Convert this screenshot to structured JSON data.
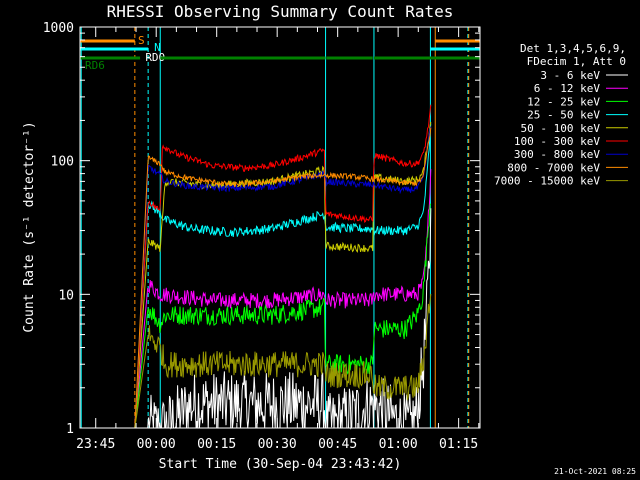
{
  "chart_data": {
    "type": "line",
    "title": "RHESSI Observing Summary Count Rates",
    "xlabel": "Start Time (30-Sep-04 23:43:42)",
    "ylabel": "Count Rate (s⁻¹ detector⁻¹)",
    "y_scale": "log",
    "ylim": [
      1,
      1000
    ],
    "xlim_minutes_from_start": [
      -2.6,
      96.6
    ],
    "x_ticks": [
      {
        "t": 1.3,
        "label": "23:45"
      },
      {
        "t": 16.3,
        "label": "00:00"
      },
      {
        "t": 31.3,
        "label": "00:15"
      },
      {
        "t": 46.3,
        "label": "00:30"
      },
      {
        "t": 61.3,
        "label": "00:45"
      },
      {
        "t": 76.3,
        "label": "01:00"
      },
      {
        "t": 91.3,
        "label": "01:15"
      }
    ],
    "y_ticks": [
      {
        "v": 1,
        "label": "1"
      },
      {
        "v": 10,
        "label": "10"
      },
      {
        "v": 100,
        "label": "100"
      },
      {
        "v": 1000,
        "label": "1000"
      }
    ],
    "legend_header": [
      "Det 1,3,4,5,6,9,",
      "FDecim 1, Att 0"
    ],
    "legend_placement": "right",
    "series": [
      {
        "name": "3 - 6 keV",
        "color": "#000000",
        "x": [
          0,
          14.3,
          17.3,
          18.5,
          25,
          40,
          58,
          58.3,
          70,
          79,
          81,
          82.5,
          83.5,
          84.5
        ],
        "y": [
          1.0,
          1.0,
          1.0,
          1.0,
          1.5,
          1.5,
          1.5,
          1.0,
          1.5,
          1.0,
          1.3,
          3.0,
          8.0,
          40.0
        ]
      },
      {
        "name": "6 - 12 keV",
        "color": "#ff00ff",
        "x": [
          0,
          11,
          14.3,
          17.3,
          18.5,
          30,
          45,
          58,
          58.3,
          70,
          70.3,
          78,
          81,
          82.5,
          83.5,
          84.5
        ],
        "y": [
          1.0,
          1.0,
          12.0,
          10.0,
          10.0,
          9.0,
          9.0,
          10.0,
          9.0,
          9.0,
          10.0,
          10.0,
          10.0,
          12.0,
          25.0,
          100.0
        ]
      },
      {
        "name": "12 - 25 keV",
        "color": "#00ff00",
        "x": [
          0,
          11,
          14.3,
          17.3,
          18.5,
          30,
          45,
          58,
          58.3,
          70,
          70.3,
          78,
          81,
          82.5,
          83.5,
          84.5
        ],
        "y": [
          1.0,
          1.0,
          8.0,
          6.0,
          7.0,
          7.0,
          7.0,
          8.0,
          3.0,
          3.0,
          5.5,
          5.5,
          7.0,
          10.0,
          25.0,
          60.0
        ]
      },
      {
        "name": "25 - 50 keV",
        "color": "#00ffff",
        "x": [
          0,
          11,
          14.3,
          17.3,
          18.5,
          25,
          35,
          45,
          58,
          58.3,
          65,
          70,
          70.3,
          78,
          81,
          82.5,
          83.5,
          84.5
        ],
        "y": [
          1.0,
          1.0,
          48.0,
          40.0,
          36.0,
          31.0,
          29.0,
          31.0,
          40.0,
          32.0,
          31.0,
          31.0,
          30.0,
          30.0,
          32.0,
          40.0,
          80.0,
          200.0
        ]
      },
      {
        "name": "50 - 100 keV",
        "color": "#cccc00",
        "x": [
          0,
          11,
          14.3,
          17.3,
          18.5,
          30,
          45,
          58,
          58.3,
          70,
          70.3,
          78,
          81,
          82.5,
          83.5,
          84.5
        ],
        "y": [
          1.0,
          1.0,
          25.0,
          22.0,
          70.0,
          65.0,
          70.0,
          85.0,
          23.0,
          22.0,
          75.0,
          70.0,
          72.0,
          80.0,
          130.0,
          200.0
        ]
      },
      {
        "name": "100 - 300 keV",
        "color": "#ff0000",
        "x": [
          0,
          11,
          14.3,
          17.3,
          17.8,
          22,
          30,
          38,
          45,
          52,
          58,
          58.3,
          70,
          70.3,
          78,
          81,
          82.5,
          83.5,
          84.5
        ],
        "y": [
          1.0,
          1.0,
          50.0,
          42.0,
          130.0,
          110.0,
          92.0,
          88.0,
          92.0,
          105.0,
          120.0,
          40.0,
          36.0,
          110.0,
          95.0,
          95.0,
          110.0,
          160.0,
          260.0
        ]
      },
      {
        "name": "300 - 800 keV",
        "color": "#0000cc",
        "x": [
          0,
          11,
          14.3,
          17.3,
          18.5,
          25,
          35,
          45,
          52,
          58,
          58.3,
          65,
          70,
          75,
          78,
          81,
          82.5,
          83.5,
          84.5
        ],
        "y": [
          1.0,
          1.0,
          90.0,
          78.0,
          70.0,
          64.0,
          62.0,
          64.0,
          72.0,
          80.0,
          70.0,
          67.0,
          66.0,
          62.0,
          60.0,
          62.0,
          72.0,
          120.0,
          200.0
        ]
      },
      {
        "name": "800 - 7000 keV",
        "color": "#ff8c00",
        "x": [
          0,
          11,
          14.3,
          17.3,
          18.5,
          25,
          35,
          45,
          52,
          58,
          58.3,
          65,
          70,
          75,
          78,
          81,
          82.5,
          83.5,
          84.5
        ],
        "y": [
          1.0,
          1.0,
          105.0,
          95.0,
          82.0,
          73.0,
          66.0,
          70.0,
          76.0,
          78.0,
          78.0,
          76.0,
          73.0,
          70.0,
          68.0,
          68.0,
          75.0,
          120.0,
          180.0
        ]
      },
      {
        "name": "7000 - 15000 keV",
        "color": "#999900",
        "x": [
          0,
          11,
          14.3,
          17.3,
          18.5,
          25,
          35,
          45,
          58,
          58.3,
          70,
          70.3,
          78,
          81,
          82.5,
          83.5,
          84.5
        ],
        "y": [
          1.0,
          1.0,
          5.0,
          4.0,
          3.0,
          3.0,
          3.0,
          3.0,
          3.0,
          2.5,
          2.5,
          2.0,
          2.0,
          2.0,
          3.0,
          6.0,
          12.0
        ]
      }
    ],
    "orbit_flags": [
      {
        "label": "S",
        "color": "#ff8c00",
        "segments": [
          [
            -2.6,
            11.0
          ],
          [
            85.5,
            96.6
          ]
        ]
      },
      {
        "label": "N",
        "color": "#00ffff",
        "segments": [
          [
            -2.6,
            14.3
          ],
          [
            84.3,
            96.6
          ]
        ]
      },
      {
        "label": "RD0",
        "color": "#ffffff",
        "segments": []
      },
      {
        "label": "RD6",
        "color": "#008000",
        "segments": [
          [
            -2.6,
            12.3
          ],
          [
            17.3,
            58.3
          ],
          [
            58.5,
            70.0
          ],
          [
            70.3,
            96.6
          ]
        ]
      }
    ],
    "vertical_markers": [
      {
        "t": -2.3,
        "color": "#00ffff",
        "style": "solid"
      },
      {
        "t": 11.0,
        "color": "#ff8c00",
        "style": "dashed"
      },
      {
        "t": 14.3,
        "color": "#00ffff",
        "style": "dashed"
      },
      {
        "t": 17.3,
        "color": "#00ffff",
        "style": "solid"
      },
      {
        "t": 58.3,
        "color": "#00ffff",
        "style": "solid"
      },
      {
        "t": 70.3,
        "color": "#00ffff",
        "style": "solid"
      },
      {
        "t": 84.3,
        "color": "#00ffff",
        "style": "solid"
      },
      {
        "t": 85.5,
        "color": "#ff8c00",
        "style": "solid"
      },
      {
        "t": 93.6,
        "color": "#00ffff",
        "style": "dashed"
      },
      {
        "t": 93.8,
        "color": "#ff8c00",
        "style": "dashed"
      }
    ],
    "footer_date": "21-Oct-2021 08:25"
  }
}
